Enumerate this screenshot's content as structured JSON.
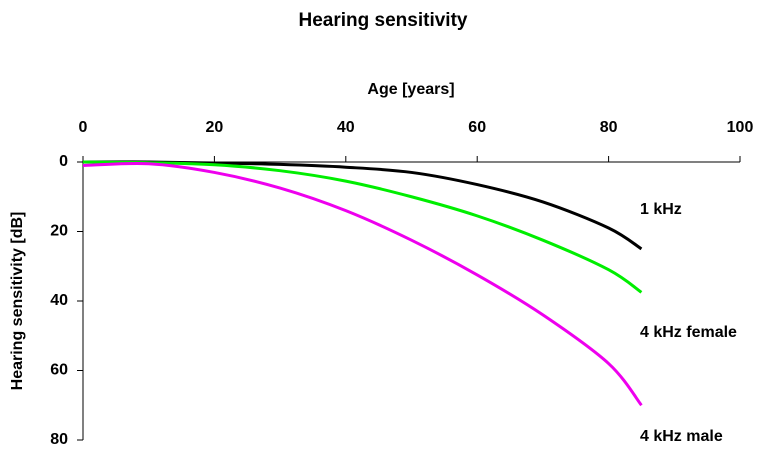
{
  "chart_data": {
    "type": "line",
    "title": "Hearing sensitivity",
    "xlabel": "Age [years]",
    "ylabel": "Hearing sensitivity [dB]",
    "x": [
      0,
      10,
      20,
      30,
      40,
      50,
      60,
      70,
      80,
      85
    ],
    "series": [
      {
        "name": "1 kHz",
        "color": "#000000",
        "values": [
          0,
          0,
          0.3,
          0.7,
          1.5,
          3,
          6.5,
          11.5,
          19,
          25
        ]
      },
      {
        "name": "4 kHz female",
        "color": "#00ee00",
        "values": [
          0,
          0.2,
          0.8,
          2.5,
          5.5,
          10,
          15.5,
          22.5,
          31,
          37.5
        ]
      },
      {
        "name": "4 kHz male",
        "color": "#ee00ee",
        "values": [
          1,
          0.5,
          3,
          7.5,
          14,
          22.5,
          32.5,
          44,
          58,
          70
        ]
      }
    ],
    "xlim": [
      0,
      100
    ],
    "xticks": [
      0,
      20,
      40,
      60,
      80,
      100
    ],
    "ylim": [
      0,
      80
    ],
    "yticks": [
      0,
      20,
      40,
      60,
      80
    ],
    "x_axis_position": "top",
    "y_inverted": true
  }
}
